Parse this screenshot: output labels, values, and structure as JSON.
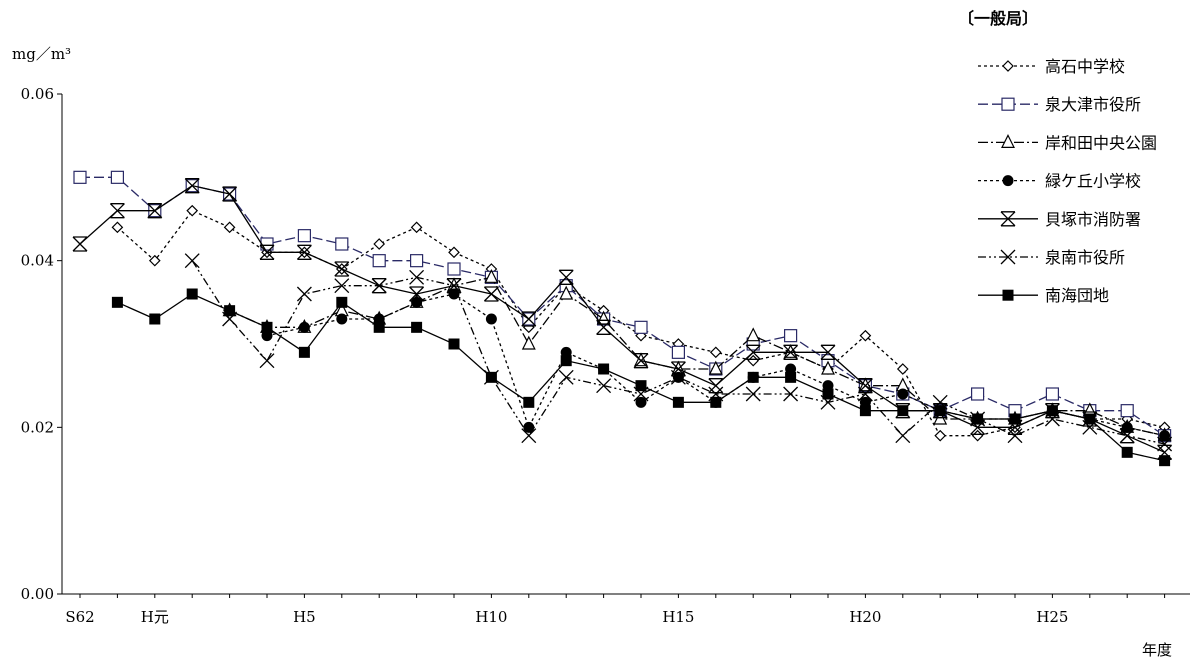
{
  "chart_data": {
    "type": "line",
    "region_label": "〔一般局〕",
    "ylabel": "mg／m³",
    "xlabel": "年度",
    "ylim": [
      0,
      0.06
    ],
    "yticks": [
      "0.00",
      "0.02",
      "0.04",
      "0.06"
    ],
    "ytick_values": [
      0,
      0.02,
      0.04,
      0.06
    ],
    "x": [
      "S62",
      "S63",
      "H元",
      "H2",
      "H3",
      "H4",
      "H5",
      "H6",
      "H7",
      "H8",
      "H9",
      "H10",
      "H11",
      "H12",
      "H13",
      "H14",
      "H15",
      "H16",
      "H17",
      "H18",
      "H19",
      "H20",
      "H21",
      "H22",
      "H23",
      "H24",
      "H25",
      "H26",
      "H27",
      "H28"
    ],
    "xtick_labels": [
      {
        "label": "S62",
        "x": "S62"
      },
      {
        "label": "H元",
        "x": "H元"
      },
      {
        "label": "H5",
        "x": "H5"
      },
      {
        "label": "H10",
        "x": "H10"
      },
      {
        "label": "H15",
        "x": "H15"
      },
      {
        "label": "H20",
        "x": "H20"
      },
      {
        "label": "H25",
        "x": "H25"
      }
    ],
    "legend_position": "top-right",
    "series": [
      {
        "name": "高石中学校",
        "marker": "diamond-open",
        "dash": "3,3",
        "color": "#000000",
        "values": [
          null,
          0.044,
          0.04,
          0.046,
          0.044,
          0.041,
          0.041,
          0.039,
          0.042,
          0.044,
          0.041,
          0.039,
          0.032,
          0.037,
          0.034,
          0.031,
          0.03,
          0.029,
          0.028,
          0.029,
          0.027,
          0.031,
          0.027,
          0.019,
          0.019,
          0.02,
          0.022,
          0.021,
          0.021,
          0.02
        ]
      },
      {
        "name": "泉大津市役所",
        "marker": "square-open",
        "dash": "10,4",
        "color": "#2a2a66",
        "values": [
          0.05,
          0.05,
          0.046,
          0.049,
          0.048,
          0.042,
          0.043,
          0.042,
          0.04,
          0.04,
          0.039,
          0.038,
          0.033,
          0.037,
          0.033,
          0.032,
          0.029,
          0.027,
          0.03,
          0.031,
          0.028,
          0.025,
          0.024,
          0.022,
          0.024,
          0.022,
          0.024,
          0.022,
          0.022,
          0.019
        ]
      },
      {
        "name": "岸和田中央公園",
        "marker": "triangle-open",
        "dash": "10,3,2,3",
        "color": "#000000",
        "values": [
          null,
          null,
          null,
          null,
          0.034,
          0.032,
          0.032,
          0.034,
          0.033,
          0.035,
          0.037,
          0.038,
          0.03,
          0.036,
          0.033,
          0.028,
          0.027,
          0.027,
          0.031,
          0.029,
          0.027,
          0.025,
          0.025,
          0.021,
          0.021,
          0.021,
          0.022,
          0.022,
          0.02,
          0.019
        ]
      },
      {
        "name": "緑ケ丘小学校",
        "marker": "circle-filled",
        "dash": "3,3",
        "color": "#000000",
        "values": [
          null,
          null,
          null,
          null,
          null,
          0.031,
          0.032,
          0.033,
          0.033,
          0.035,
          0.036,
          0.033,
          0.02,
          0.029,
          0.027,
          0.023,
          0.026,
          0.023,
          0.026,
          0.027,
          0.025,
          0.023,
          0.024,
          0.022,
          0.021,
          0.021,
          0.022,
          0.021,
          0.02,
          0.019
        ]
      },
      {
        "name": "貝塚市消防署",
        "marker": "asterisk",
        "dash": "",
        "color": "#000000",
        "values": [
          0.042,
          0.046,
          0.046,
          0.049,
          0.048,
          0.041,
          0.041,
          0.039,
          0.037,
          0.036,
          0.037,
          0.036,
          0.033,
          0.038,
          0.032,
          0.028,
          0.027,
          0.025,
          0.029,
          0.029,
          0.029,
          0.025,
          0.022,
          0.022,
          0.02,
          0.02,
          0.022,
          0.021,
          0.019,
          0.017
        ]
      },
      {
        "name": "泉南市役所",
        "marker": "x",
        "dash": "8,3,2,3,2,3",
        "color": "#000000",
        "values": [
          null,
          null,
          null,
          0.04,
          0.033,
          0.028,
          0.036,
          0.037,
          0.037,
          0.038,
          0.037,
          0.026,
          0.019,
          0.026,
          0.025,
          0.024,
          0.026,
          0.024,
          0.024,
          0.024,
          0.023,
          0.024,
          0.019,
          0.023,
          0.021,
          0.019,
          0.021,
          0.02,
          0.019,
          0.018
        ]
      },
      {
        "name": "南海団地",
        "marker": "square-filled",
        "dash": "",
        "color": "#000000",
        "values": [
          null,
          0.035,
          0.033,
          0.036,
          0.034,
          0.032,
          0.029,
          0.035,
          0.032,
          0.032,
          0.03,
          0.026,
          0.023,
          0.028,
          0.027,
          0.025,
          0.023,
          0.023,
          0.026,
          0.026,
          0.024,
          0.022,
          0.022,
          0.022,
          0.021,
          0.021,
          0.022,
          0.021,
          0.017,
          0.016
        ]
      }
    ]
  }
}
